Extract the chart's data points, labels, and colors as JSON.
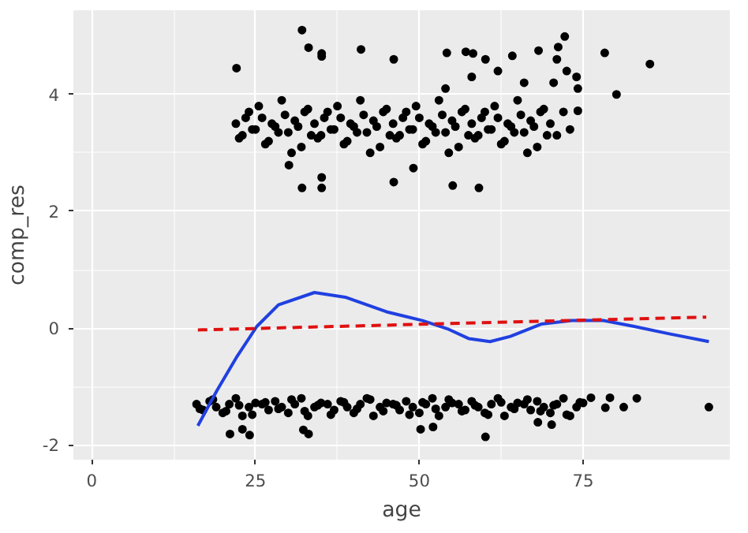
{
  "chart_data": {
    "type": "scatter",
    "xlabel": "age",
    "ylabel": "comp_res",
    "xlim": [
      -2.8,
      97.4
    ],
    "ylim": [
      -2.25,
      5.44
    ],
    "xticks": [
      0,
      25,
      50,
      75
    ],
    "yticks": [
      -2,
      0,
      2,
      4
    ],
    "grid": true,
    "series": [
      {
        "marker": "circle",
        "color": "#000000",
        "x": [
          22,
          23,
          24,
          25,
          26,
          27,
          28,
          29,
          30,
          31,
          32,
          33,
          34,
          35,
          36,
          37,
          38,
          39,
          40,
          41,
          42,
          43,
          44,
          45,
          46,
          47,
          48,
          49,
          50,
          51,
          52,
          53,
          54,
          55,
          56,
          57,
          58,
          59,
          60,
          61,
          62,
          63,
          64,
          65,
          66,
          67,
          68,
          69,
          70,
          71,
          72,
          73,
          22.5,
          23.5,
          24.5,
          25.5,
          26.5,
          27.5,
          28.5,
          29.5,
          30.5,
          31.5,
          32.5,
          33.5,
          34.5,
          35.5,
          36.5,
          37.5,
          38.5,
          39.5,
          40.5,
          41.5,
          42.5,
          43.5,
          44.5,
          45.5,
          46.5,
          47.5,
          48.5,
          49.5,
          50.5,
          51.5,
          52.5,
          53.5,
          54.5,
          55.5,
          56.5,
          57.5,
          58.5,
          59.5,
          60.5,
          61.5,
          62.5,
          63.5,
          64.5,
          65.5,
          66.5,
          67.5,
          68.5,
          69.5,
          70.5,
          72.5,
          74,
          71,
          66,
          62,
          58,
          54,
          74.2,
          32.1,
          22.1,
          33.1,
          35.1,
          35.1,
          41.1,
          46.1,
          54.2,
          57.1,
          58.2,
          60.1,
          64.2,
          68.2,
          71.2,
          72.2,
          78.3,
          85.2,
          80.1,
          74.2,
          32.1,
          35.1,
          35.1,
          46.1,
          55.1,
          59.1,
          30.1,
          49.1,
          16,
          17,
          18,
          19,
          20,
          21,
          22,
          23,
          24,
          25,
          26,
          27,
          28,
          29,
          30,
          31,
          32,
          33,
          34,
          35,
          36,
          37,
          38,
          39,
          40,
          41,
          42,
          43,
          44,
          45,
          46,
          47,
          48,
          49,
          50,
          51,
          52,
          53,
          54,
          55,
          56,
          57,
          58,
          59,
          60,
          61,
          62,
          63,
          64,
          65,
          66,
          67,
          68,
          69,
          70,
          71,
          72,
          73,
          74,
          75,
          16.5,
          18.5,
          20.5,
          22.5,
          24.5,
          26.5,
          28.5,
          30.5,
          32.5,
          34.5,
          36.5,
          38.5,
          40.5,
          42.5,
          44.5,
          46.5,
          48.5,
          50.5,
          52.5,
          54.5,
          56.5,
          58.5,
          60.5,
          62.5,
          64.5,
          66.5,
          68.5,
          70.5,
          72.5,
          74.5,
          21.1,
          23.0,
          24.1,
          32.3,
          33.1,
          50.2,
          52.1,
          60.1,
          68.1,
          70.2,
          79.1,
          83.2,
          81.2,
          94.2,
          76.2,
          78.4
        ],
        "values": [
          3.5,
          3.3,
          3.7,
          3.4,
          3.6,
          3.2,
          3.45,
          3.9,
          3.35,
          3.55,
          3.1,
          3.75,
          3.5,
          3.3,
          3.7,
          3.4,
          3.6,
          3.2,
          3.45,
          3.9,
          3.35,
          3.55,
          3.1,
          3.75,
          3.5,
          3.3,
          3.7,
          3.4,
          3.6,
          3.2,
          3.45,
          3.9,
          3.35,
          3.55,
          3.1,
          3.75,
          3.5,
          3.3,
          3.7,
          3.4,
          3.6,
          3.2,
          3.45,
          3.9,
          3.35,
          3.55,
          3.1,
          3.75,
          3.5,
          3.3,
          3.7,
          3.4,
          3.25,
          3.6,
          3.4,
          3.8,
          3.15,
          3.5,
          3.35,
          3.65,
          3.0,
          3.45,
          3.7,
          3.3,
          3.25,
          3.6,
          3.4,
          3.8,
          3.15,
          3.5,
          3.35,
          3.65,
          3.0,
          3.45,
          3.7,
          3.3,
          3.25,
          3.6,
          3.4,
          3.8,
          3.15,
          3.5,
          3.35,
          3.65,
          3.0,
          3.45,
          3.7,
          3.3,
          3.25,
          3.6,
          3.4,
          3.8,
          3.15,
          3.5,
          3.35,
          3.65,
          3.0,
          3.45,
          3.7,
          3.3,
          4.2,
          4.4,
          4.3,
          4.6,
          4.2,
          4.4,
          4.3,
          4.1,
          4.1,
          5.1,
          4.45,
          4.8,
          4.7,
          4.65,
          4.77,
          4.6,
          4.71,
          4.73,
          4.7,
          4.6,
          4.66,
          4.75,
          4.81,
          4.99,
          4.71,
          4.52,
          4.0,
          3.72,
          2.4,
          2.4,
          2.58,
          2.5,
          2.44,
          2.4,
          2.79,
          2.74,
          -1.3,
          -1.4,
          -1.25,
          -1.35,
          -1.45,
          -1.3,
          -1.2,
          -1.5,
          -1.35,
          -1.28,
          -1.3,
          -1.4,
          -1.25,
          -1.35,
          -1.45,
          -1.3,
          -1.2,
          -1.5,
          -1.35,
          -1.28,
          -1.3,
          -1.4,
          -1.25,
          -1.35,
          -1.45,
          -1.3,
          -1.2,
          -1.5,
          -1.35,
          -1.28,
          -1.3,
          -1.4,
          -1.25,
          -1.35,
          -1.45,
          -1.3,
          -1.2,
          -1.5,
          -1.35,
          -1.28,
          -1.3,
          -1.4,
          -1.25,
          -1.35,
          -1.45,
          -1.3,
          -1.2,
          -1.5,
          -1.35,
          -1.28,
          -1.3,
          -1.4,
          -1.25,
          -1.35,
          -1.45,
          -1.3,
          -1.2,
          -1.5,
          -1.35,
          -1.28,
          -1.38,
          -1.22,
          -1.42,
          -1.32,
          -1.48,
          -1.27,
          -1.38,
          -1.22,
          -1.42,
          -1.32,
          -1.48,
          -1.27,
          -1.38,
          -1.22,
          -1.42,
          -1.32,
          -1.48,
          -1.27,
          -1.38,
          -1.22,
          -1.42,
          -1.32,
          -1.48,
          -1.27,
          -1.38,
          -1.22,
          -1.42,
          -1.32,
          -1.48,
          -1.27,
          -1.81,
          -1.73,
          -1.83,
          -1.74,
          -1.81,
          -1.73,
          -1.69,
          -1.86,
          -1.61,
          -1.65,
          -1.19,
          -1.2,
          -1.35,
          -1.35,
          -1.19,
          -1.36
        ]
      },
      {
        "type": "line",
        "line_style": "solid",
        "color": "#2040e0",
        "x": [
          16.2,
          19.1,
          22.2,
          25.2,
          28.5,
          34.0,
          38.7,
          45.0,
          50.5,
          54.5,
          57.6,
          60.8,
          63.9,
          68.6,
          73.3,
          78.1,
          82.8,
          88.3,
          94.2
        ],
        "values": [
          -1.67,
          -1.07,
          -0.48,
          0.03,
          0.4,
          0.61,
          0.53,
          0.28,
          0.13,
          -0.02,
          -0.18,
          -0.23,
          -0.14,
          0.07,
          0.13,
          0.13,
          0.03,
          -0.1,
          -0.23
        ]
      },
      {
        "type": "line",
        "line_style": "dashed",
        "color": "#e01010",
        "x": [
          16.2,
          93.8
        ],
        "values": [
          -0.03,
          0.19
        ]
      }
    ]
  }
}
